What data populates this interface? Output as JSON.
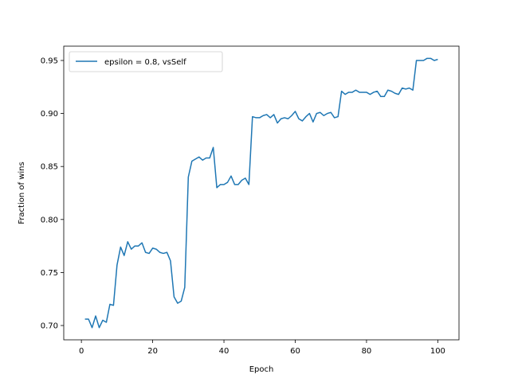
{
  "chart_data": {
    "type": "line",
    "title": "",
    "xlabel": "Epoch",
    "ylabel": "Fraction of wins",
    "xlim": [
      -4.95,
      105.95
    ],
    "ylim": [
      0.6865,
      0.9635
    ],
    "x_ticks": [
      0,
      20,
      40,
      60,
      80,
      100
    ],
    "y_ticks": [
      0.7,
      0.75,
      0.8,
      0.85,
      0.9,
      0.95
    ],
    "y_tick_labels": [
      "0.70",
      "0.75",
      "0.80",
      "0.85",
      "0.90",
      "0.95"
    ],
    "grid": false,
    "legend": {
      "position": "top-left"
    },
    "series": [
      {
        "name": "epsilon = 0.8, vsSelf",
        "color": "#1f77b4",
        "x": [
          1,
          2,
          3,
          4,
          5,
          6,
          7,
          8,
          9,
          10,
          11,
          12,
          13,
          14,
          15,
          16,
          17,
          18,
          19,
          20,
          21,
          22,
          23,
          24,
          25,
          26,
          27,
          28,
          29,
          30,
          31,
          32,
          33,
          34,
          35,
          36,
          37,
          38,
          39,
          40,
          41,
          42,
          43,
          44,
          45,
          46,
          47,
          48,
          49,
          50,
          51,
          52,
          53,
          54,
          55,
          56,
          57,
          58,
          59,
          60,
          61,
          62,
          63,
          64,
          65,
          66,
          67,
          68,
          69,
          70,
          71,
          72,
          73,
          74,
          75,
          76,
          77,
          78,
          79,
          80,
          81,
          82,
          83,
          84,
          85,
          86,
          87,
          88,
          89,
          90,
          91,
          92,
          93,
          94,
          95,
          96,
          97,
          98,
          99,
          100
        ],
        "y": [
          0.706,
          0.706,
          0.698,
          0.709,
          0.698,
          0.705,
          0.703,
          0.72,
          0.719,
          0.757,
          0.774,
          0.766,
          0.779,
          0.772,
          0.775,
          0.775,
          0.778,
          0.769,
          0.768,
          0.773,
          0.772,
          0.769,
          0.768,
          0.769,
          0.761,
          0.727,
          0.721,
          0.723,
          0.736,
          0.84,
          0.855,
          0.857,
          0.859,
          0.856,
          0.858,
          0.858,
          0.868,
          0.83,
          0.833,
          0.833,
          0.835,
          0.841,
          0.833,
          0.833,
          0.837,
          0.839,
          0.833,
          0.897,
          0.896,
          0.896,
          0.898,
          0.899,
          0.896,
          0.899,
          0.891,
          0.895,
          0.896,
          0.895,
          0.898,
          0.902,
          0.895,
          0.893,
          0.897,
          0.9,
          0.892,
          0.9,
          0.901,
          0.898,
          0.9,
          0.901,
          0.896,
          0.897,
          0.921,
          0.918,
          0.92,
          0.92,
          0.922,
          0.92,
          0.92,
          0.92,
          0.918,
          0.92,
          0.921,
          0.916,
          0.916,
          0.922,
          0.921,
          0.919,
          0.918,
          0.924,
          0.923,
          0.924,
          0.922,
          0.95,
          0.95,
          0.95,
          0.952,
          0.952,
          0.95,
          0.951
        ]
      }
    ]
  }
}
